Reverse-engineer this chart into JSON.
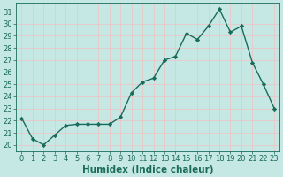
{
  "x": [
    0,
    1,
    2,
    3,
    4,
    5,
    6,
    7,
    8,
    9,
    10,
    11,
    12,
    13,
    14,
    15,
    16,
    17,
    18,
    19,
    20,
    21,
    22,
    23
  ],
  "y": [
    22.2,
    20.5,
    20.0,
    20.8,
    21.6,
    21.7,
    21.7,
    21.7,
    21.7,
    22.3,
    24.3,
    25.2,
    25.5,
    27.0,
    27.3,
    29.2,
    28.7,
    29.8,
    31.2,
    29.3,
    29.8,
    26.8,
    25.0,
    23.0
  ],
  "xlabel": "Humidex (Indice chaleur)",
  "xlim": [
    -0.5,
    23.5
  ],
  "ylim": [
    19.5,
    31.7
  ],
  "yticks": [
    20,
    21,
    22,
    23,
    24,
    25,
    26,
    27,
    28,
    29,
    30,
    31
  ],
  "xticks": [
    0,
    1,
    2,
    3,
    4,
    5,
    6,
    7,
    8,
    9,
    10,
    11,
    12,
    13,
    14,
    15,
    16,
    17,
    18,
    19,
    20,
    21,
    22,
    23
  ],
  "bg_color": "#c5e8e5",
  "grid_color": "#e8c8c8",
  "line_color": "#1a6b5a",
  "marker": "D",
  "marker_size": 2.2,
  "line_width": 1.0,
  "xlabel_fontsize": 7.5,
  "tick_fontsize": 6.0
}
